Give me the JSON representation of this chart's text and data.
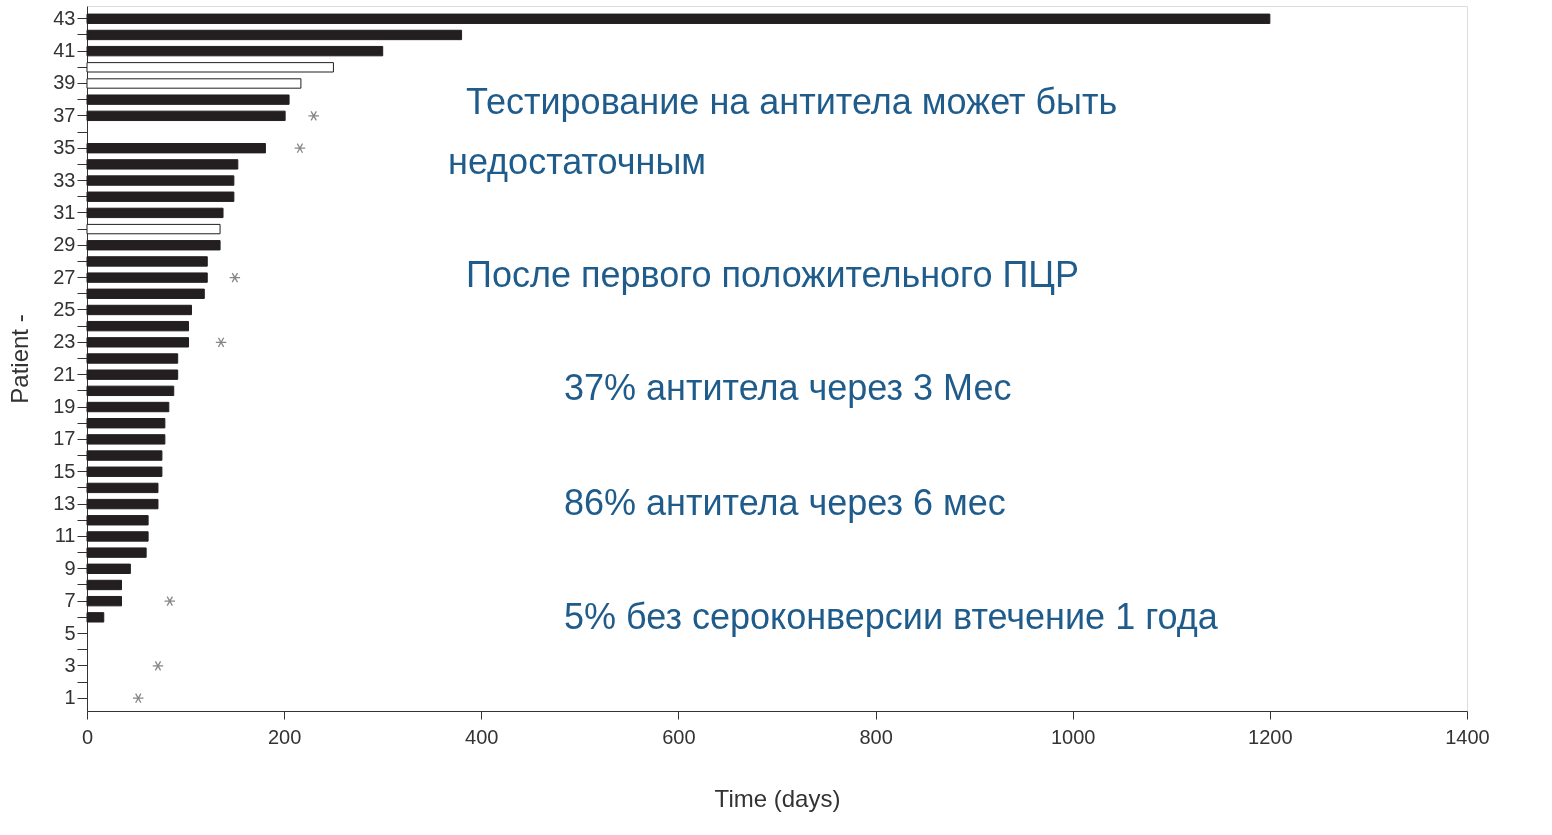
{
  "chart_data": {
    "type": "bar",
    "orientation": "horizontal",
    "xlabel": "Time (days)",
    "ylabel": "Patient -",
    "categories": [
      "43",
      null,
      "41",
      null,
      "39",
      null,
      "37",
      null,
      "35",
      null,
      "33",
      null,
      "31",
      null,
      "29",
      null,
      "27",
      null,
      "25",
      null,
      "23",
      null,
      "21",
      null,
      "19",
      null,
      "17",
      null,
      "15",
      null,
      "13",
      null,
      "11",
      null,
      "9",
      null,
      "7",
      null,
      "5",
      null,
      "3",
      null,
      "1"
    ],
    "values": [
      1200,
      380,
      300,
      250,
      217,
      205,
      201,
      null,
      181,
      153,
      149,
      149,
      138,
      135,
      135,
      122,
      122,
      119,
      106,
      103,
      103,
      92,
      92,
      88,
      83,
      79,
      79,
      76,
      76,
      72,
      72,
      62,
      62,
      60,
      44,
      35,
      35,
      17,
      null,
      null,
      null,
      null,
      null
    ],
    "colors": [
      "#231f20",
      "#231f20",
      "#231f20",
      "#ffffff",
      "#ffffff",
      "#231f20",
      "#231f20",
      "#231f20",
      "#231f20",
      "#231f20",
      "#231f20",
      "#231f20",
      "#231f20",
      "#ffffff",
      "#231f20",
      "#231f20",
      "#231f20",
      "#231f20",
      "#231f20",
      "#231f20",
      "#231f20",
      "#231f20",
      "#231f20",
      "#231f20",
      "#231f20",
      "#231f20",
      "#231f20",
      "#231f20",
      "#231f20",
      "#231f20",
      "#231f20",
      "#231f20",
      "#231f20",
      "#231f20",
      "#231f20",
      "#231f20",
      "#231f20",
      "#231f20",
      "#231f20",
      "#231f20",
      "#231f20",
      "#231f20",
      "#231f20"
    ],
    "series": [
      {
        "type": "scatter",
        "marker": "cross",
        "color": "#555555",
        "values": [
          null,
          null,
          null,
          null,
          null,
          null,
          230,
          null,
          216,
          null,
          null,
          null,
          null,
          null,
          null,
          null,
          150,
          null,
          null,
          null,
          136,
          null,
          null,
          null,
          null,
          null,
          null,
          null,
          null,
          null,
          null,
          null,
          null,
          null,
          null,
          null,
          84,
          null,
          null,
          null,
          72,
          null,
          52
        ]
      }
    ],
    "xlim": [
      0,
      1400
    ],
    "xticks": [
      0,
      200,
      400,
      600,
      800,
      1000,
      1200,
      1400
    ],
    "grid": false,
    "annotations": [
      "Тестирование на антитела может быть недостаточным",
      "После первого положительного ПЦР",
      "37% антитела через 3 Мес",
      "86% антитела через 6 мес",
      "5% без сероконверсии втечение 1 года"
    ]
  }
}
